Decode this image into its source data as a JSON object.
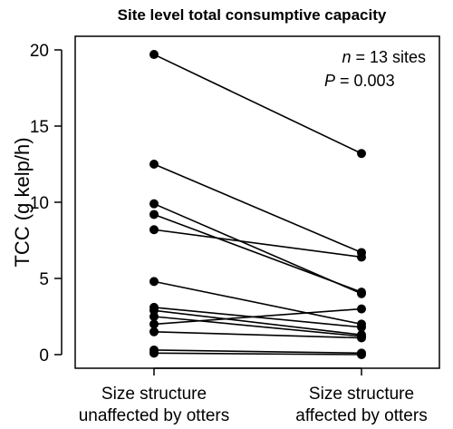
{
  "chart_data": {
    "type": "line",
    "title": "Site level total consumptive capacity",
    "ylabel": "TCC (g kelp/h)",
    "categories": [
      [
        "Size structure",
        "unaffected by otters"
      ],
      [
        "Size structure",
        "affected by otters"
      ]
    ],
    "ylim": [
      0,
      20
    ],
    "yticks": [
      0,
      5,
      10,
      15,
      20
    ],
    "grid": false,
    "annotations": {
      "n_symbol": "n",
      "n_text": " = 13 sites",
      "p_symbol": "P",
      "p_text": " = 0.003"
    },
    "series": [
      {
        "values": [
          19.7,
          13.2
        ]
      },
      {
        "values": [
          12.5,
          6.7
        ]
      },
      {
        "values": [
          9.9,
          4.0
        ]
      },
      {
        "values": [
          9.2,
          4.1
        ]
      },
      {
        "values": [
          8.2,
          6.4
        ]
      },
      {
        "values": [
          4.8,
          2.0
        ]
      },
      {
        "values": [
          3.1,
          1.8
        ]
      },
      {
        "values": [
          2.9,
          1.3
        ]
      },
      {
        "values": [
          2.5,
          1.2
        ]
      },
      {
        "values": [
          2.0,
          3.0
        ]
      },
      {
        "values": [
          1.5,
          1.1
        ]
      },
      {
        "values": [
          0.3,
          0.1
        ]
      },
      {
        "values": [
          0.1,
          0.0
        ]
      }
    ]
  }
}
